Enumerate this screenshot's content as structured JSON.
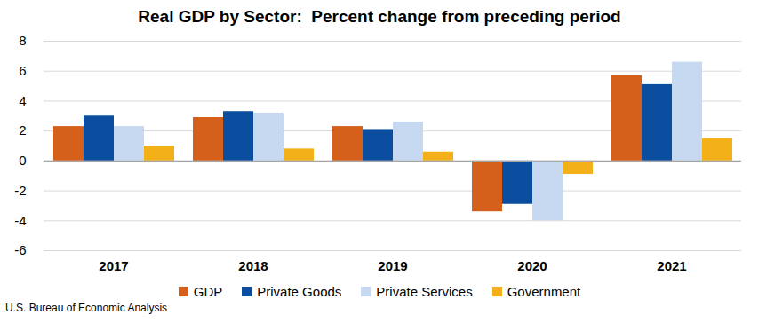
{
  "chart_data": {
    "type": "bar",
    "title": "Real GDP by Sector:  Percent change from preceding period",
    "source": "U.S. Bureau of Economic Analysis",
    "categories": [
      "2017",
      "2018",
      "2019",
      "2020",
      "2021"
    ],
    "series": [
      {
        "name": "GDP",
        "color": "#d4601c",
        "values": [
          2.3,
          2.9,
          2.3,
          -3.4,
          5.7
        ]
      },
      {
        "name": "Private Goods",
        "color": "#0b4d9e",
        "values": [
          3.0,
          3.3,
          2.1,
          -2.9,
          5.1
        ]
      },
      {
        "name": "Private Services",
        "color": "#c6d9f0",
        "values": [
          2.3,
          3.2,
          2.6,
          -4.0,
          6.6
        ]
      },
      {
        "name": "Government",
        "color": "#f3b019",
        "values": [
          1.0,
          0.8,
          0.6,
          -0.9,
          1.5
        ]
      }
    ],
    "ylim": [
      -6,
      8
    ],
    "yticks": [
      -6,
      -4,
      -2,
      0,
      2,
      4,
      6,
      8
    ],
    "grid": true,
    "legend": "bottom"
  }
}
